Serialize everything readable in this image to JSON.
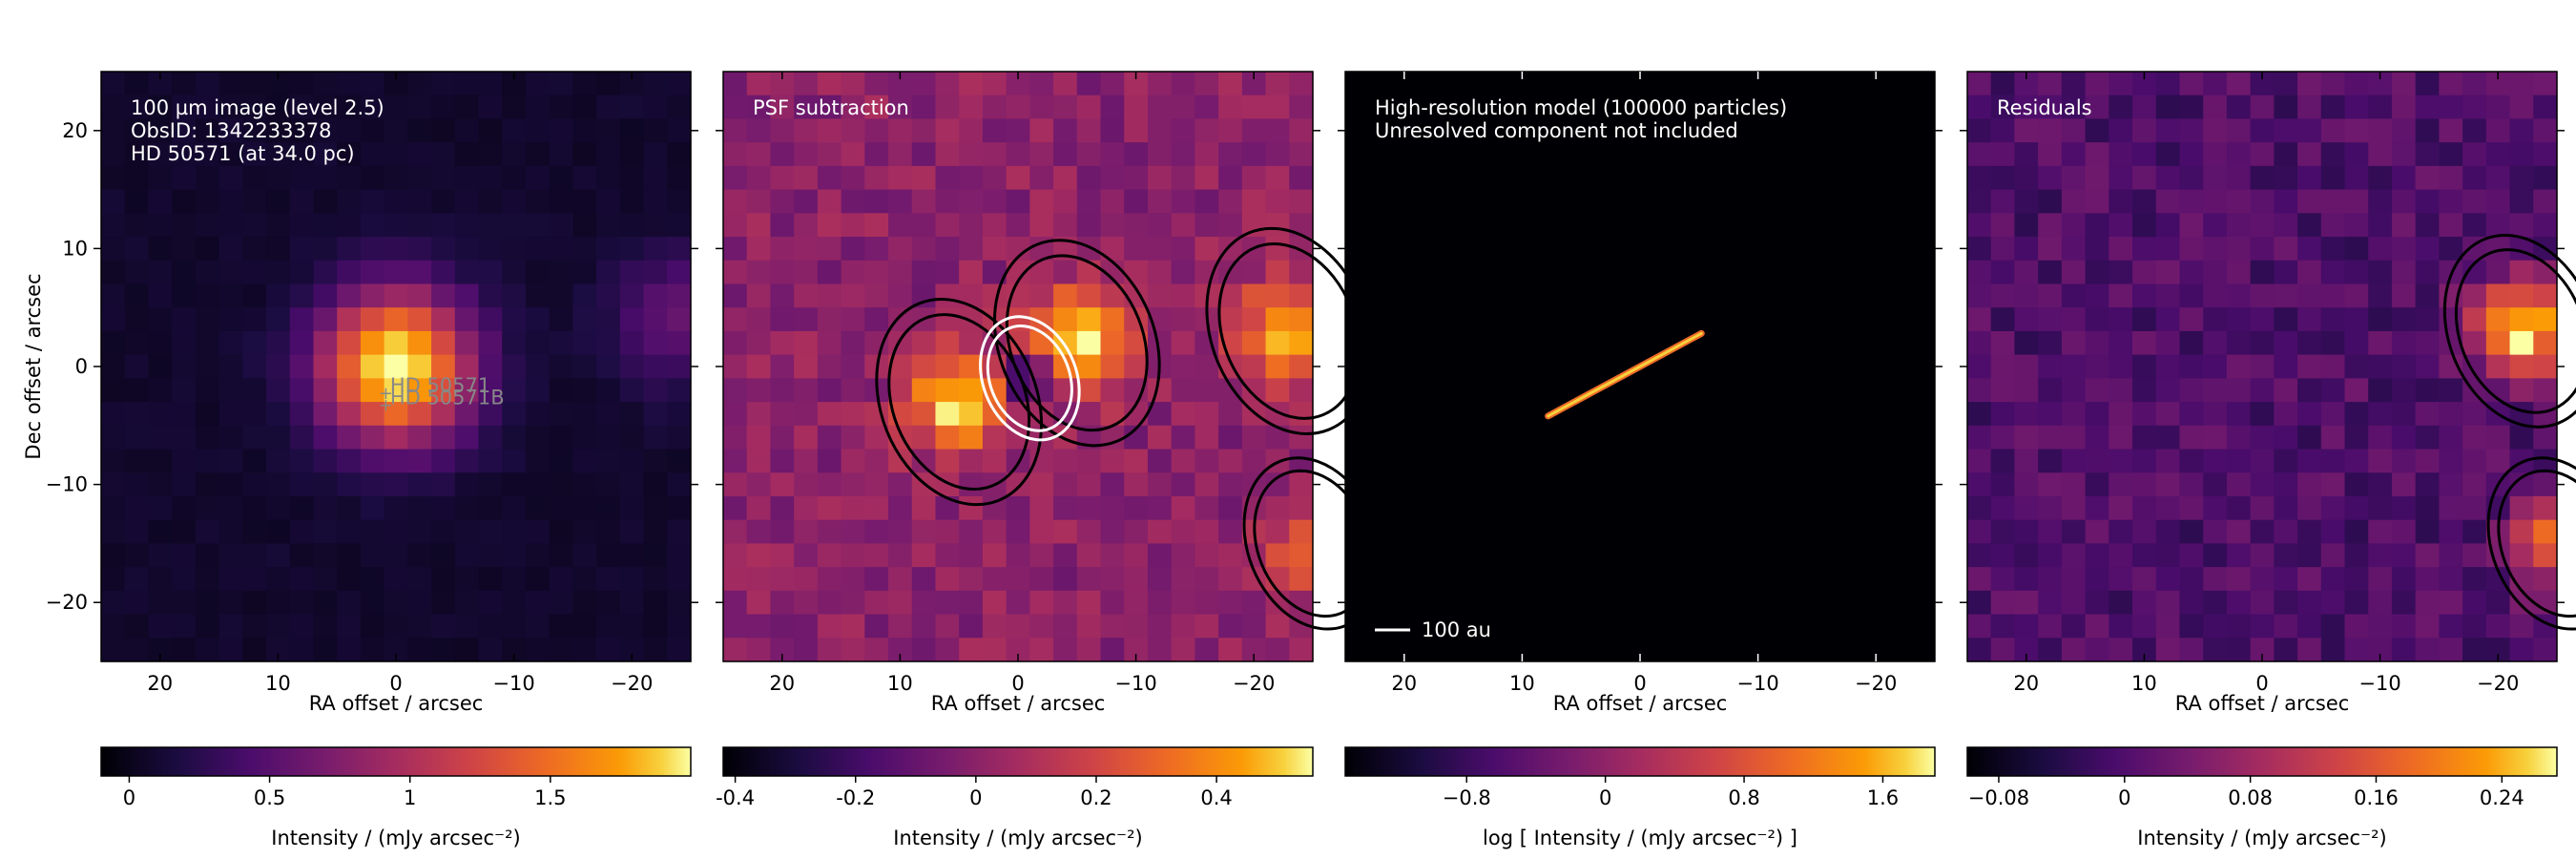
{
  "figure": {
    "background": "#ffffff"
  },
  "chart_data": [
    {
      "type": "heatmap",
      "panel": "observation",
      "annotation_lines": [
        "100 µm image (level 2.5)",
        "ObsID: 1342233378",
        "HD 50571 (at 34.0 pc)"
      ],
      "xlabel": "RA offset / arcsec",
      "ylabel": "Dec offset / arcsec",
      "xlim": [
        25,
        -25
      ],
      "ylim": [
        -25,
        25
      ],
      "xticks": [
        20,
        10,
        0,
        -10,
        -20
      ],
      "yticks": [
        20,
        10,
        0,
        -10,
        -20
      ],
      "colormap": "inferno",
      "background_level": 0.08,
      "sources": [
        {
          "x": 0,
          "y": 0,
          "amplitude": 2.0,
          "sigma": 4.5
        },
        {
          "x": -24,
          "y": 4,
          "amplitude": 0.5,
          "sigma": 4.0
        }
      ],
      "markers": [
        {
          "label": "HD 50571",
          "x": 0.5,
          "y": -2.2
        },
        {
          "label": "HD 50571B",
          "x": 0.5,
          "y": -3.2
        }
      ],
      "colorbar": {
        "vmin": -0.1,
        "vmax": 2.0,
        "ticks": [
          0,
          0.5,
          1,
          1.5
        ],
        "tick_labels": [
          "0",
          "0.5",
          "1",
          "1.5"
        ],
        "label": "Intensity / (mJy arcsec⁻²)"
      }
    },
    {
      "type": "heatmap",
      "panel": "psf-subtraction",
      "annotation_lines": [
        "PSF subtraction"
      ],
      "xlabel": "RA offset / arcsec",
      "xlim": [
        25,
        -25
      ],
      "ylim": [
        -25,
        25
      ],
      "xticks": [
        20,
        10,
        0,
        -10,
        -20
      ],
      "yticks": [
        20,
        10,
        0,
        -10,
        -20
      ],
      "colormap": "inferno",
      "background_level": 0.0,
      "sources": [
        {
          "x": 5,
          "y": -3,
          "amplitude": 0.55,
          "sigma": 3.0
        },
        {
          "x": -5,
          "y": 2,
          "amplitude": 0.55,
          "sigma": 3.0
        },
        {
          "x": -1,
          "y": -1,
          "amplitude": -0.45,
          "sigma": 1.8
        },
        {
          "x": -23,
          "y": 3,
          "amplitude": 0.5,
          "sigma": 3.0
        },
        {
          "x": -25,
          "y": -15,
          "amplitude": 0.35,
          "sigma": 2.5
        }
      ],
      "colorbar": {
        "vmin": -0.42,
        "vmax": 0.56,
        "ticks": [
          -0.4,
          -0.2,
          0,
          0.2,
          0.4
        ],
        "tick_labels": [
          "-0.4",
          "-0.2",
          "0",
          "0.2",
          "0.4"
        ],
        "label": "Intensity / (mJy arcsec⁻²)"
      }
    },
    {
      "type": "heatmap",
      "panel": "model",
      "annotation_lines": [
        "High-resolution model (100000 particles)",
        "Unresolved component not included"
      ],
      "xlabel": "RA offset / arcsec",
      "xlim": [
        25,
        -25
      ],
      "ylim": [
        -25,
        25
      ],
      "xticks": [
        20,
        10,
        0,
        -10,
        -20
      ],
      "yticks": [
        20,
        10,
        0,
        -10,
        -20
      ],
      "colormap": "inferno",
      "model_streak": {
        "x1": 7.8,
        "y1": -4.2,
        "x2": -5.2,
        "y2": 2.8
      },
      "scalebar": {
        "label": "100 au",
        "length_arcsec": 3.0
      },
      "colorbar": {
        "vmin": -1.5,
        "vmax": 1.9,
        "ticks": [
          -0.8,
          0,
          0.8,
          1.6
        ],
        "tick_labels": [
          "−0.8",
          "0",
          "0.8",
          "1.6"
        ],
        "label": "log [ Intensity / (mJy arcsec⁻²) ]"
      }
    },
    {
      "type": "heatmap",
      "panel": "residuals",
      "annotation_lines": [
        "Residuals"
      ],
      "xlabel": "RA offset / arcsec",
      "xlim": [
        25,
        -25
      ],
      "ylim": [
        -25,
        25
      ],
      "xticks": [
        20,
        10,
        0,
        -10,
        -20
      ],
      "yticks": [
        20,
        10,
        0,
        -10,
        -20
      ],
      "colormap": "inferno",
      "background_level": 0.0,
      "sources": [
        {
          "x": -22,
          "y": 3,
          "amplitude": 0.27,
          "sigma": 2.8
        },
        {
          "x": -25,
          "y": -15,
          "amplitude": 0.2,
          "sigma": 2.5
        }
      ],
      "colorbar": {
        "vmin": -0.1,
        "vmax": 0.275,
        "ticks": [
          -0.08,
          0,
          0.08,
          0.16,
          0.24
        ],
        "tick_labels": [
          "−0.08",
          "0",
          "0.08",
          "0.16",
          "0.24"
        ],
        "label": "Intensity / (mJy arcsec⁻²)"
      }
    }
  ]
}
